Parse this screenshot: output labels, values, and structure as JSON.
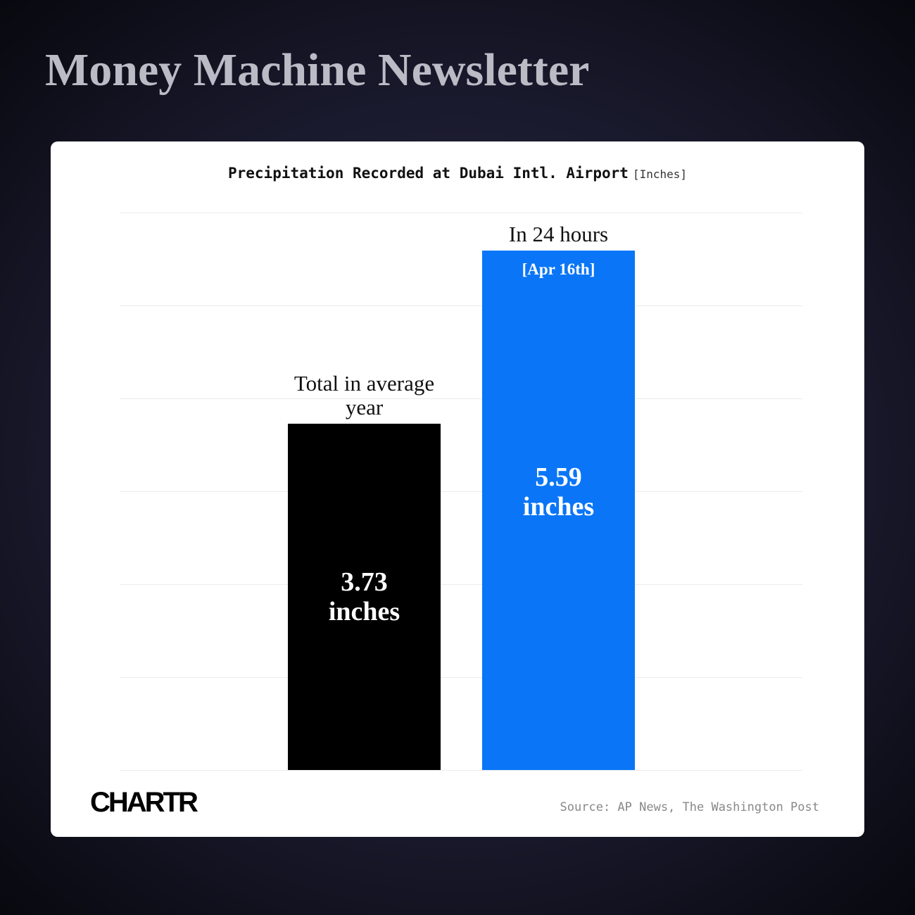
{
  "header": {
    "title": "Money Machine Newsletter"
  },
  "chart_data": {
    "type": "bar",
    "title": "Precipitation Recorded at Dubai Intl. Airport",
    "unit": "[Inches]",
    "categories": [
      "Total in average year",
      "In 24 hours"
    ],
    "values": [
      3.73,
      5.59
    ],
    "value_labels": [
      "3.73 inches",
      "5.59 inches"
    ],
    "colors": [
      "#000000",
      "#0a76f7"
    ],
    "annotation": "[Apr 16th]",
    "ylim": [
      0,
      6
    ],
    "yticks": [
      0,
      1,
      2,
      3,
      4,
      5,
      6
    ],
    "grid": true,
    "source": "Source: AP News, The Washington Post",
    "logo": "CHARTR"
  }
}
